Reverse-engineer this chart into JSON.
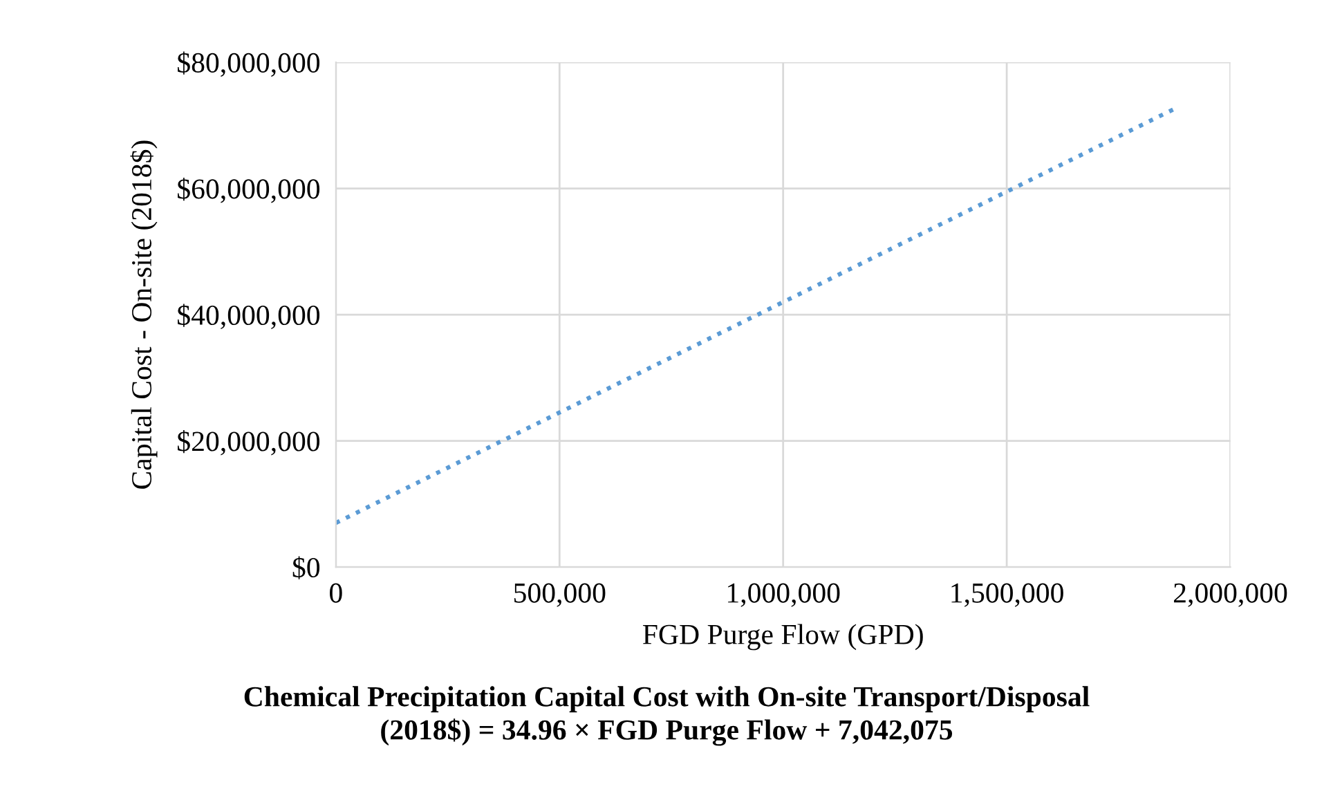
{
  "chart_data": {
    "type": "line",
    "xlabel": "FGD Purge Flow (GPD)",
    "ylabel": "Capital Cost - On-site (2018$)",
    "annotations": [
      "Chemical Precipitation Capital Cost with On-site Transport/Disposal\n(2018$) = 34.96 × FGD Purge Flow + 7,042,075"
    ],
    "series": [
      {
        "color": "#5b9bd5",
        "x": [
          0,
          1880000
        ],
        "values": [
          7000000,
          72800000
        ]
      }
    ],
    "xlim": [
      0,
      2000000
    ],
    "xticks": [
      0,
      {
        "value": 500000,
        "label": "500,000"
      },
      {
        "value": 1000000,
        "label": "1,000,000"
      },
      {
        "value": 1500000,
        "label": "1,500,000"
      },
      {
        "value": 2000000,
        "label": "2,000,000"
      }
    ],
    "ylim": [
      0,
      80000000
    ],
    "yticks": [
      {
        "value": 0,
        "label": "$0"
      },
      {
        "value": 20000000,
        "label": "$20,000,000"
      },
      {
        "value": 40000000,
        "label": "$40,000,000"
      },
      {
        "value": 60000000,
        "label": "$60,000,000"
      },
      {
        "value": 80000000,
        "label": "$80,000,000"
      }
    ],
    "grid": true,
    "legend": false,
    "marker": "none",
    "line_style": "dotted"
  }
}
